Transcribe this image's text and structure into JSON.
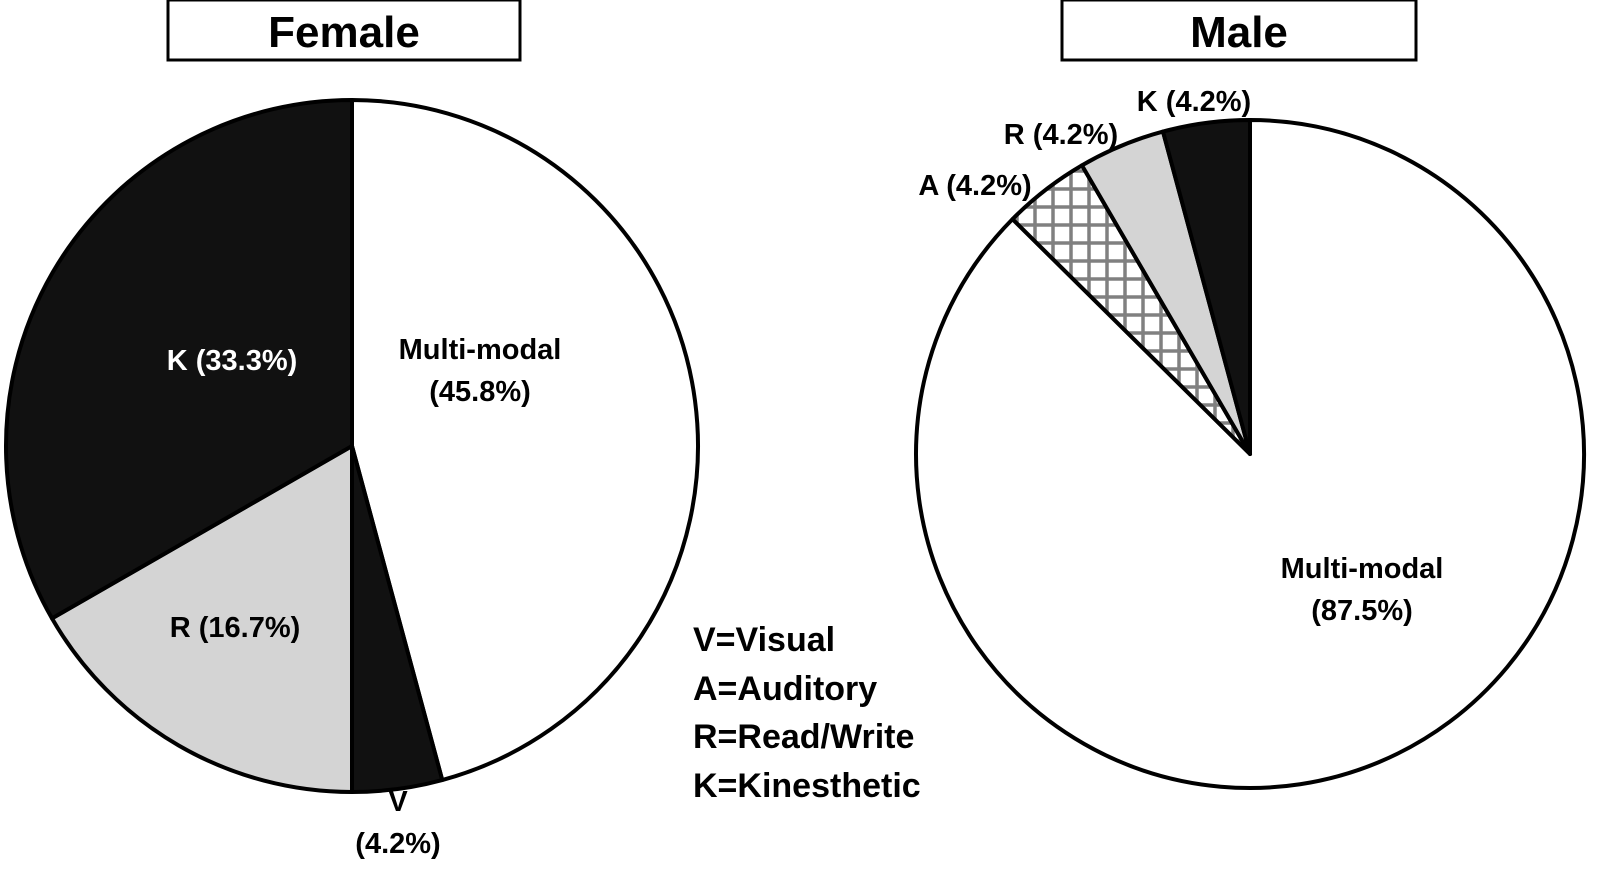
{
  "chart_data": [
    {
      "type": "pie",
      "title": "Female",
      "slices": [
        {
          "key": "multimodal",
          "label": "Multi-modal (45.8%)",
          "value": 45.8,
          "color": "#ffffff",
          "text_color": "#000000"
        },
        {
          "key": "v",
          "label": "V (4.2%)",
          "value": 4.2,
          "color": "#111111",
          "text_color": "#000000"
        },
        {
          "key": "r",
          "label": "R (16.7%)",
          "value": 16.7,
          "color": "#d4d4d4",
          "text_color": "#000000"
        },
        {
          "key": "k",
          "label": "K (33.3%)",
          "value": 33.3,
          "color": "#111111",
          "text_color": "#ffffff"
        }
      ],
      "label_lines": {
        "multimodal": [
          "Multi-modal",
          "(45.8%)"
        ],
        "v": [
          "V",
          "(4.2%)"
        ],
        "r": [
          "R (16.7%)"
        ],
        "k": [
          "K (33.3%)"
        ]
      }
    },
    {
      "type": "pie",
      "title": "Male",
      "slices": [
        {
          "key": "multimodal",
          "label": "Multi-modal (87.5%)",
          "value": 87.5,
          "color": "#ffffff",
          "text_color": "#000000"
        },
        {
          "key": "a",
          "label": "A (4.2%)",
          "value": 4.2,
          "color": "hatch",
          "text_color": "#000000"
        },
        {
          "key": "r",
          "label": "R (4.2%)",
          "value": 4.2,
          "color": "#d4d4d4",
          "text_color": "#000000"
        },
        {
          "key": "k",
          "label": "K (4.2%)",
          "value": 4.2,
          "color": "#111111",
          "text_color": "#000000"
        }
      ],
      "label_lines": {
        "multimodal": [
          "Multi-modal",
          "(87.5%)"
        ],
        "a": [
          "A (4.2%)"
        ],
        "r": [
          "R (4.2%)"
        ],
        "k": [
          "K (4.2%)"
        ]
      }
    }
  ],
  "legend": {
    "items": [
      "V=Visual",
      "A=Auditory",
      "R=Read/Write",
      "K=Kinesthetic"
    ]
  }
}
